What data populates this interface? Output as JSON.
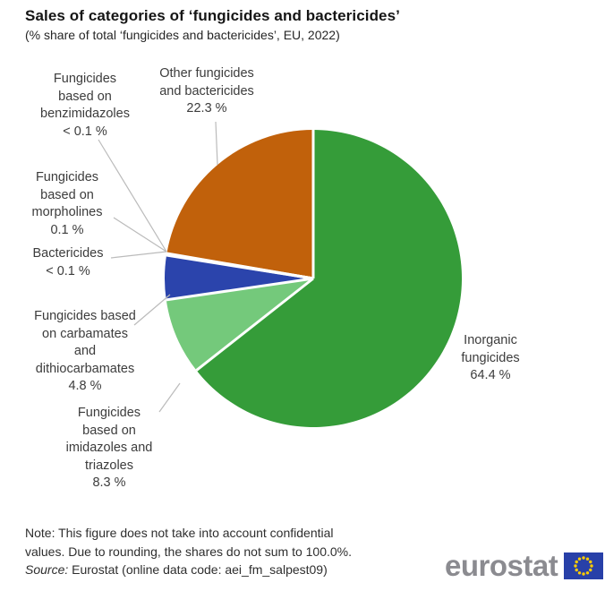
{
  "header": {
    "title": "Sales of categories of ‘fungicides and bactericides’",
    "subtitle": "(% share of total ‘fungicides and bactericides’, EU, 2022)"
  },
  "chart_data": {
    "type": "pie",
    "title": "Sales of categories of ‘fungicides and bactericides’",
    "subtitle": "(% share of total ‘fungicides and bactericides’, EU, 2022)",
    "unit": "% share of total",
    "geo": "EU",
    "year": "2022",
    "direction": "clockwise",
    "start_angle_deg": 0,
    "slices": [
      {
        "label": "Inorganic fungicides",
        "value": 64.4,
        "display": "64.4 %",
        "color": "#359C39"
      },
      {
        "label": "Fungicides based on imidazoles and triazoles",
        "value": 8.3,
        "display": "8.3 %",
        "color": "#74C97B"
      },
      {
        "label": "Fungicides based on carbamates and dithiocarbamates",
        "value": 4.8,
        "display": "4.8 %",
        "color": "#2B44AC"
      },
      {
        "label": "Bactericides",
        "value": 0.05,
        "display": "< 0.1 %",
        "color": "#CCCCCC"
      },
      {
        "label": "Fungicides based on morpholines",
        "value": 0.1,
        "display": "0.1 %",
        "color": "#CCCCCC"
      },
      {
        "label": "Fungicides based on benzimidazoles",
        "value": 0.05,
        "display": "< 0.1 %",
        "color": "#CCCCCC"
      },
      {
        "label": "Other fungicides and bactericides",
        "value": 22.3,
        "display": "22.3 %",
        "color": "#C1610B"
      }
    ]
  },
  "callouts": [
    {
      "name": "fungicides-benzimidazoles",
      "lines": [
        "Fungicides",
        "based on",
        "benzimidazoles",
        "< 0.1 %"
      ]
    },
    {
      "name": "other-fungicides-bactericides",
      "lines": [
        "Other fungicides",
        "and bactericides",
        "22.3 %"
      ]
    },
    {
      "name": "fungicides-morpholines",
      "lines": [
        "Fungicides",
        "based on",
        "morpholines",
        "0.1 %"
      ]
    },
    {
      "name": "bactericides",
      "lines": [
        "Bactericides",
        "< 0.1 %"
      ]
    },
    {
      "name": "fungicides-carbamates",
      "lines": [
        "Fungicides based",
        "on carbamates",
        "and",
        "dithiocarbamates",
        "4.8 %"
      ]
    },
    {
      "name": "fungicides-imidazoles-triazoles",
      "lines": [
        "Fungicides",
        "based on",
        "imidazoles and",
        "triazoles",
        "8.3 %"
      ]
    },
    {
      "name": "inorganic-fungicides",
      "lines": [
        "Inorganic",
        "fungicides",
        "64.4 %"
      ]
    }
  ],
  "footer": {
    "note_lines": [
      "Note: This figure does not take into account confidential",
      "values. Due to rounding, the shares do not sum to 100.0%."
    ],
    "source_label": "Source:",
    "source_text": " Eurostat (online data code: aei_fm_salpest09)"
  },
  "branding": {
    "logo_text": "eurostat",
    "colors": {
      "logo_gray": "#8B8B90",
      "flag_blue": "#2840A8",
      "star_yellow": "#FFCC00",
      "leader_line": "#BBBBBB",
      "separator": "#FFFFFF"
    }
  }
}
